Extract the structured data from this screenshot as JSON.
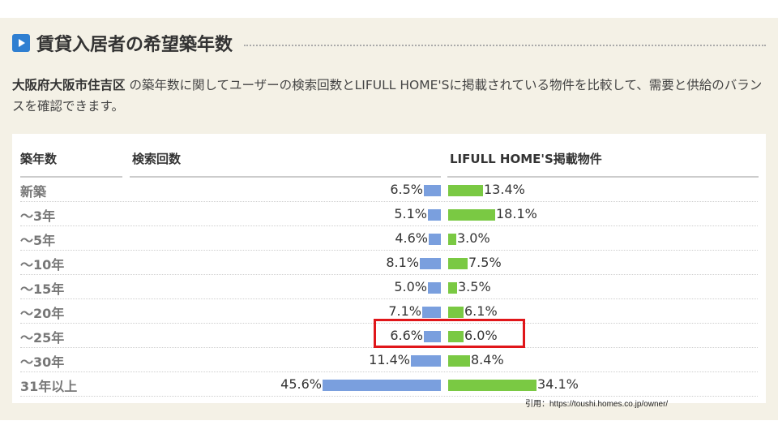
{
  "section": {
    "title": "賃貸入居者の希望築年数"
  },
  "description": {
    "location": "大阪府大阪市住吉区",
    "text": " の築年数に関してユーザーの検索回数とLIFULL HOME'Sに掲載されている物件を比較して、需要と供給のバランスを確認できます。"
  },
  "table": {
    "col1": "築年数",
    "col2": "検索回数",
    "col3": "LIFULL HOME'S掲載物件"
  },
  "chart_data": {
    "type": "bar",
    "categories": [
      "新築",
      "～3年",
      "～5年",
      "～10年",
      "～15年",
      "～20年",
      "～25年",
      "～30年",
      "31年以上"
    ],
    "series": [
      {
        "name": "検索回数",
        "values": [
          6.5,
          5.1,
          4.6,
          8.1,
          5.0,
          7.1,
          6.6,
          11.4,
          45.6
        ],
        "color": "#7a9fde"
      },
      {
        "name": "LIFULL HOME'S掲載物件",
        "values": [
          13.4,
          18.1,
          3.0,
          7.5,
          3.5,
          6.1,
          6.0,
          8.4,
          34.1
        ],
        "color": "#7ac943"
      }
    ],
    "labels_left": [
      "6.5%",
      "5.1%",
      "4.6%",
      "8.1%",
      "5.0%",
      "7.1%",
      "6.6%",
      "11.4%",
      "45.6%"
    ],
    "labels_right": [
      "13.4%",
      "18.1%",
      "3.0%",
      "7.5%",
      "3.5%",
      "6.1%",
      "6.0%",
      "8.4%",
      "34.1%"
    ],
    "highlighted_category": "～25年",
    "highlight_color": "#e0161a"
  },
  "source": "引用：https://toushi.homes.co.jp/owner/"
}
